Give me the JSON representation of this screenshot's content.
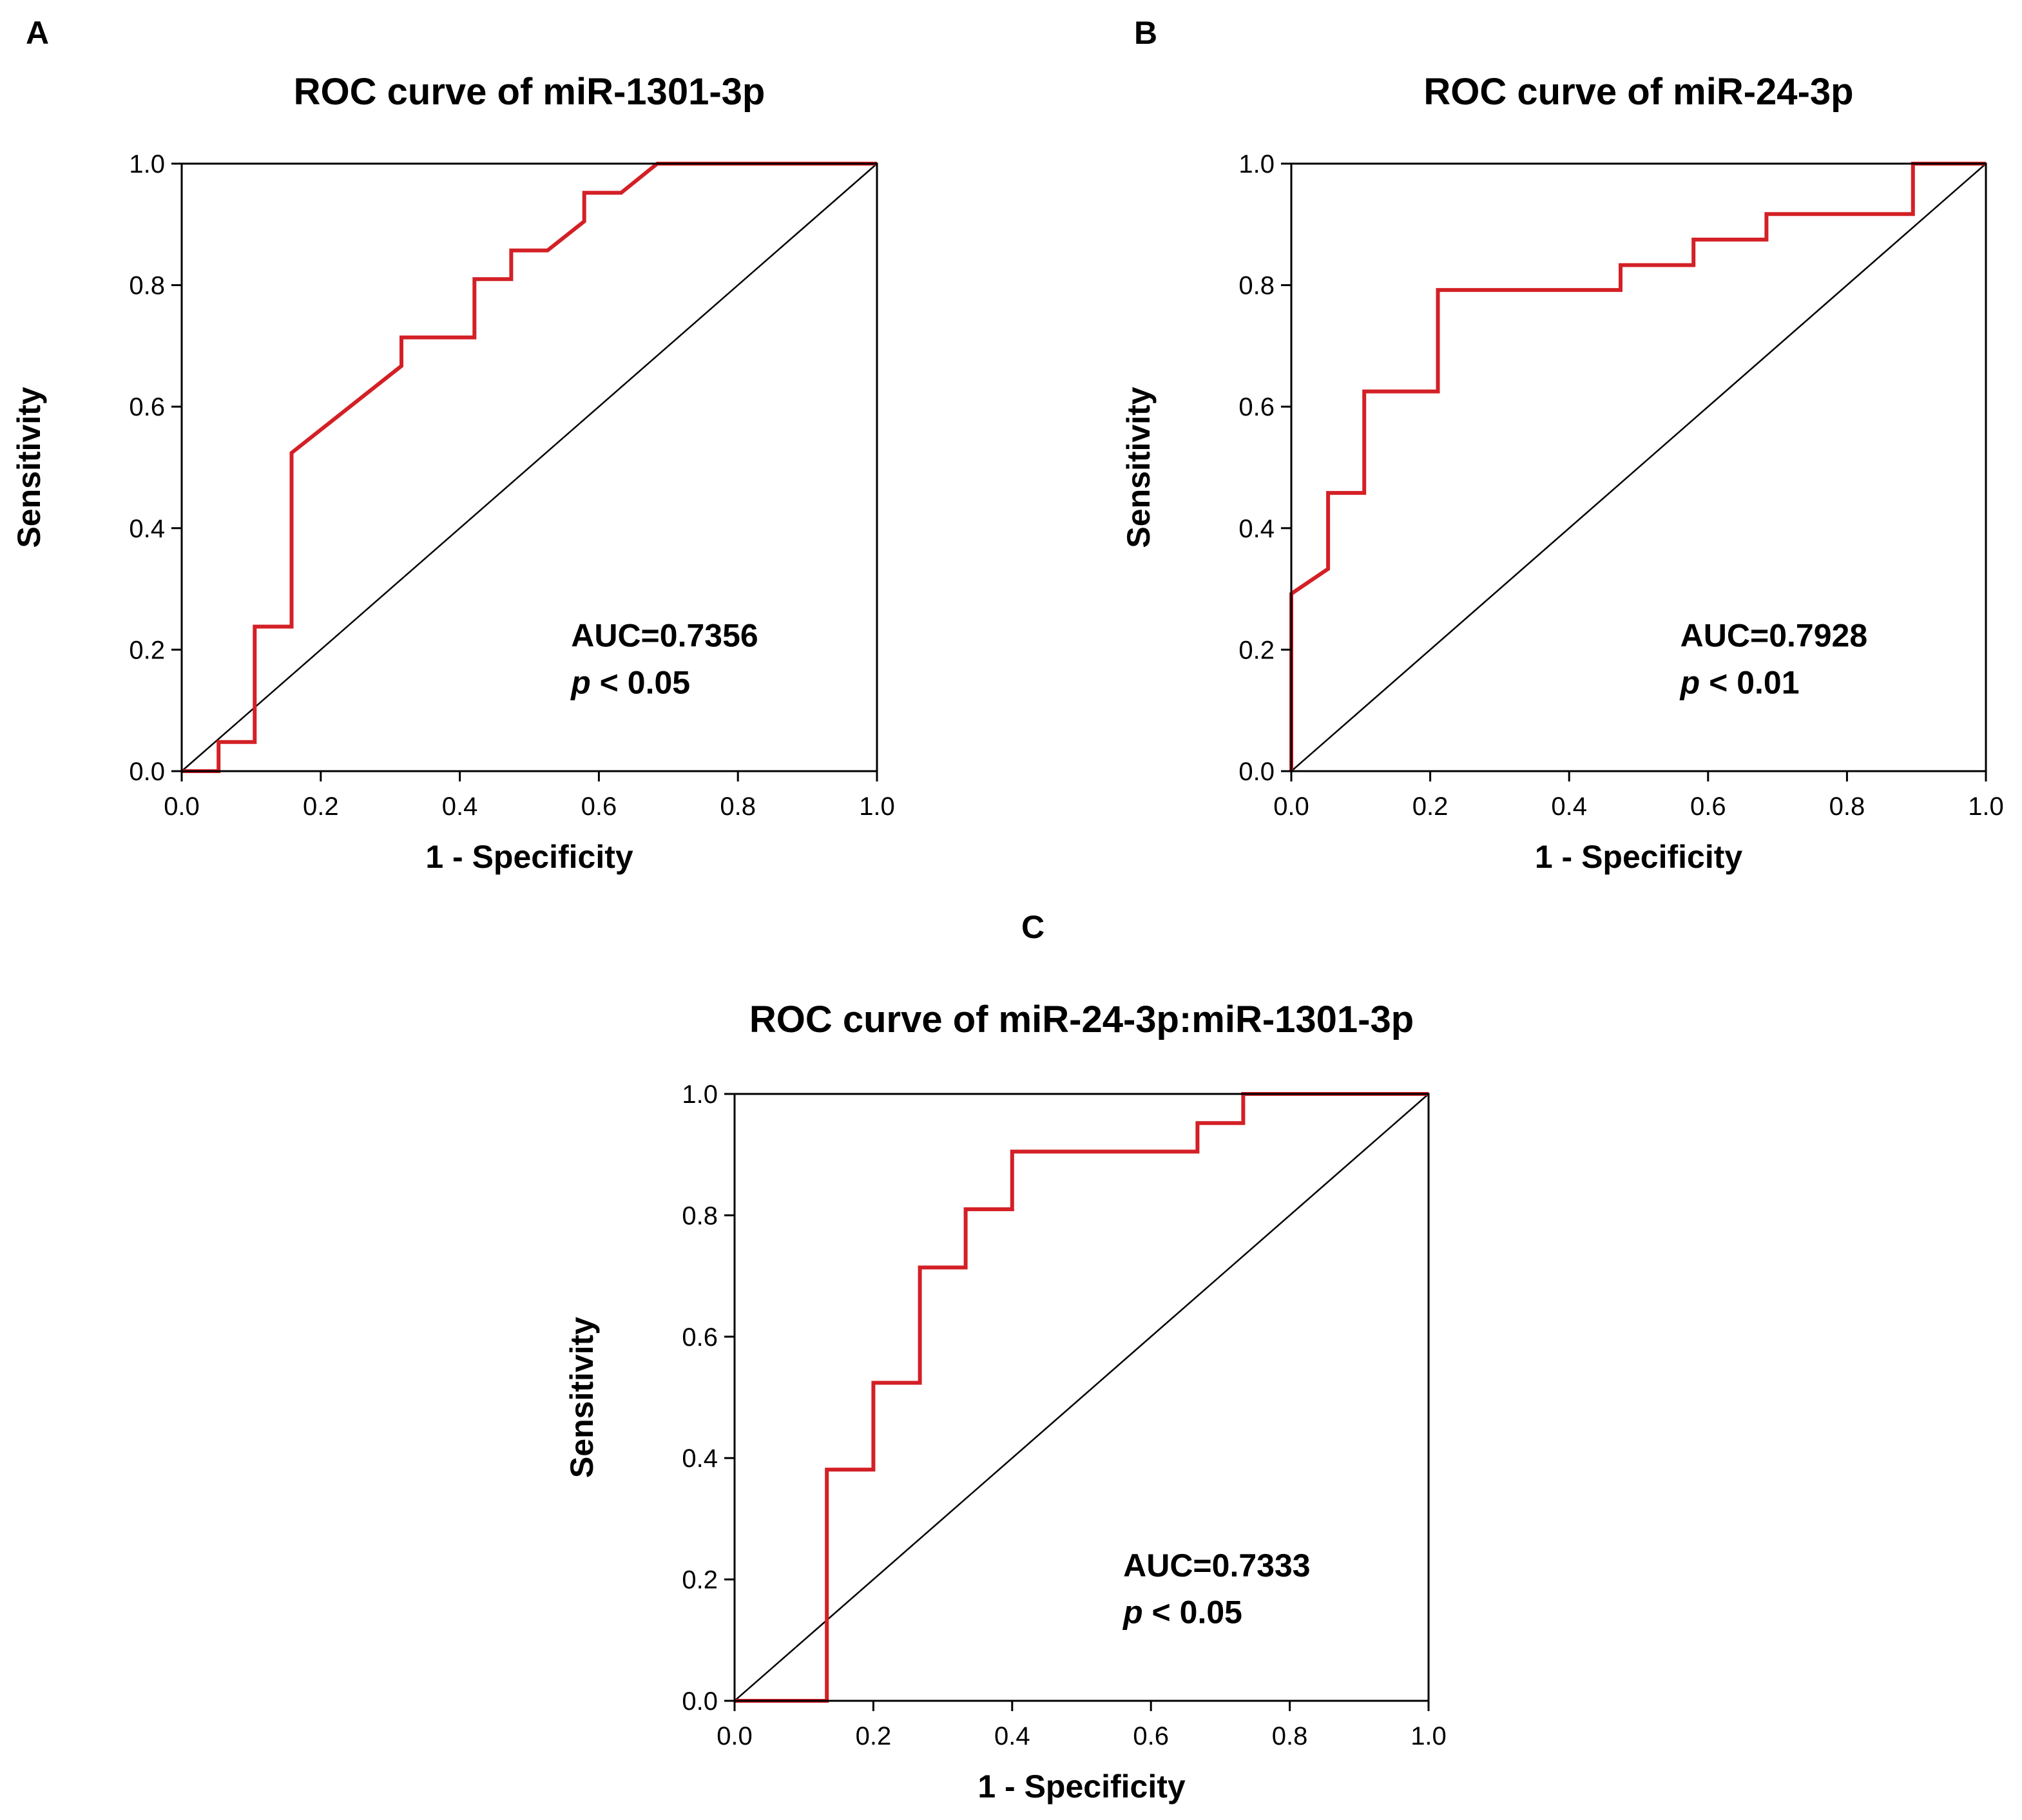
{
  "chart_data": [
    {
      "type": "line",
      "panel": "A",
      "title": "ROC curve of miR-1301-3p",
      "xlabel": "1 - Specificity",
      "ylabel": "Sensitivity",
      "xlim": [
        0,
        1
      ],
      "ylim": [
        0,
        1
      ],
      "xticks": [
        "0.0",
        "0.2",
        "0.4",
        "0.6",
        "0.8",
        "1.0"
      ],
      "yticks": [
        "0.0",
        "0.2",
        "0.4",
        "0.6",
        "0.8",
        "1.0"
      ],
      "annotation": {
        "auc": "AUC=0.7356",
        "p_symbol": "p",
        "p_text": " < 0.05"
      },
      "series": [
        {
          "name": "ROC",
          "color": "#d32026",
          "x": [
            0,
            0.053,
            0.053,
            0.105,
            0.105,
            0.158,
            0.158,
            0.316,
            0.316,
            0.421,
            0.421,
            0.474,
            0.474,
            0.526,
            0.579,
            0.579,
            0.632,
            0.684,
            1.0
          ],
          "y": [
            0,
            0,
            0.048,
            0.048,
            0.238,
            0.238,
            0.524,
            0.667,
            0.714,
            0.714,
            0.81,
            0.81,
            0.857,
            0.857,
            0.905,
            0.952,
            0.952,
            1.0,
            1.0
          ]
        },
        {
          "name": "reference",
          "color": "#000000",
          "x": [
            0,
            1
          ],
          "y": [
            0,
            1
          ]
        }
      ]
    },
    {
      "type": "line",
      "panel": "B",
      "title": "ROC curve of miR-24-3p",
      "xlabel": "1 - Specificity",
      "ylabel": "Sensitivity",
      "xlim": [
        0,
        1
      ],
      "ylim": [
        0,
        1
      ],
      "xticks": [
        "0.0",
        "0.2",
        "0.4",
        "0.6",
        "0.8",
        "1.0"
      ],
      "yticks": [
        "0.0",
        "0.2",
        "0.4",
        "0.6",
        "0.8",
        "1.0"
      ],
      "annotation": {
        "auc": "AUC=0.7928",
        "p_symbol": "p",
        "p_text": " < 0.01"
      },
      "series": [
        {
          "name": "ROC",
          "color": "#d32026",
          "x": [
            0,
            0,
            0.053,
            0.053,
            0.053,
            0.105,
            0.105,
            0.211,
            0.211,
            0.474,
            0.474,
            0.579,
            0.579,
            0.684,
            0.684,
            0.895,
            0.895,
            1.0
          ],
          "y": [
            0,
            0.292,
            0.333,
            0.375,
            0.458,
            0.458,
            0.625,
            0.625,
            0.792,
            0.792,
            0.833,
            0.833,
            0.875,
            0.875,
            0.917,
            0.917,
            1.0,
            1.0
          ]
        },
        {
          "name": "reference",
          "color": "#000000",
          "x": [
            0,
            1
          ],
          "y": [
            0,
            1
          ]
        }
      ]
    },
    {
      "type": "line",
      "panel": "C",
      "title": "ROC curve of miR-24-3p:miR-1301-3p",
      "xlabel": "1 - Specificity",
      "ylabel": "Sensitivity",
      "xlim": [
        0,
        1
      ],
      "ylim": [
        0,
        1
      ],
      "xticks": [
        "0.0",
        "0.2",
        "0.4",
        "0.6",
        "0.8",
        "1.0"
      ],
      "yticks": [
        "0.0",
        "0.2",
        "0.4",
        "0.6",
        "0.8",
        "1.0"
      ],
      "annotation": {
        "auc": "AUC=0.7333",
        "p_symbol": "p",
        "p_text": " < 0.05"
      },
      "series": [
        {
          "name": "ROC",
          "color": "#d32026",
          "x": [
            0,
            0.133,
            0.133,
            0.2,
            0.2,
            0.267,
            0.267,
            0.333,
            0.333,
            0.4,
            0.4,
            0.667,
            0.667,
            0.733,
            0.733,
            1.0
          ],
          "y": [
            0,
            0,
            0.381,
            0.381,
            0.524,
            0.524,
            0.714,
            0.714,
            0.81,
            0.81,
            0.905,
            0.905,
            0.952,
            0.952,
            1.0,
            1.0
          ]
        },
        {
          "name": "reference",
          "color": "#000000",
          "x": [
            0,
            1
          ],
          "y": [
            0,
            1
          ]
        }
      ]
    }
  ]
}
